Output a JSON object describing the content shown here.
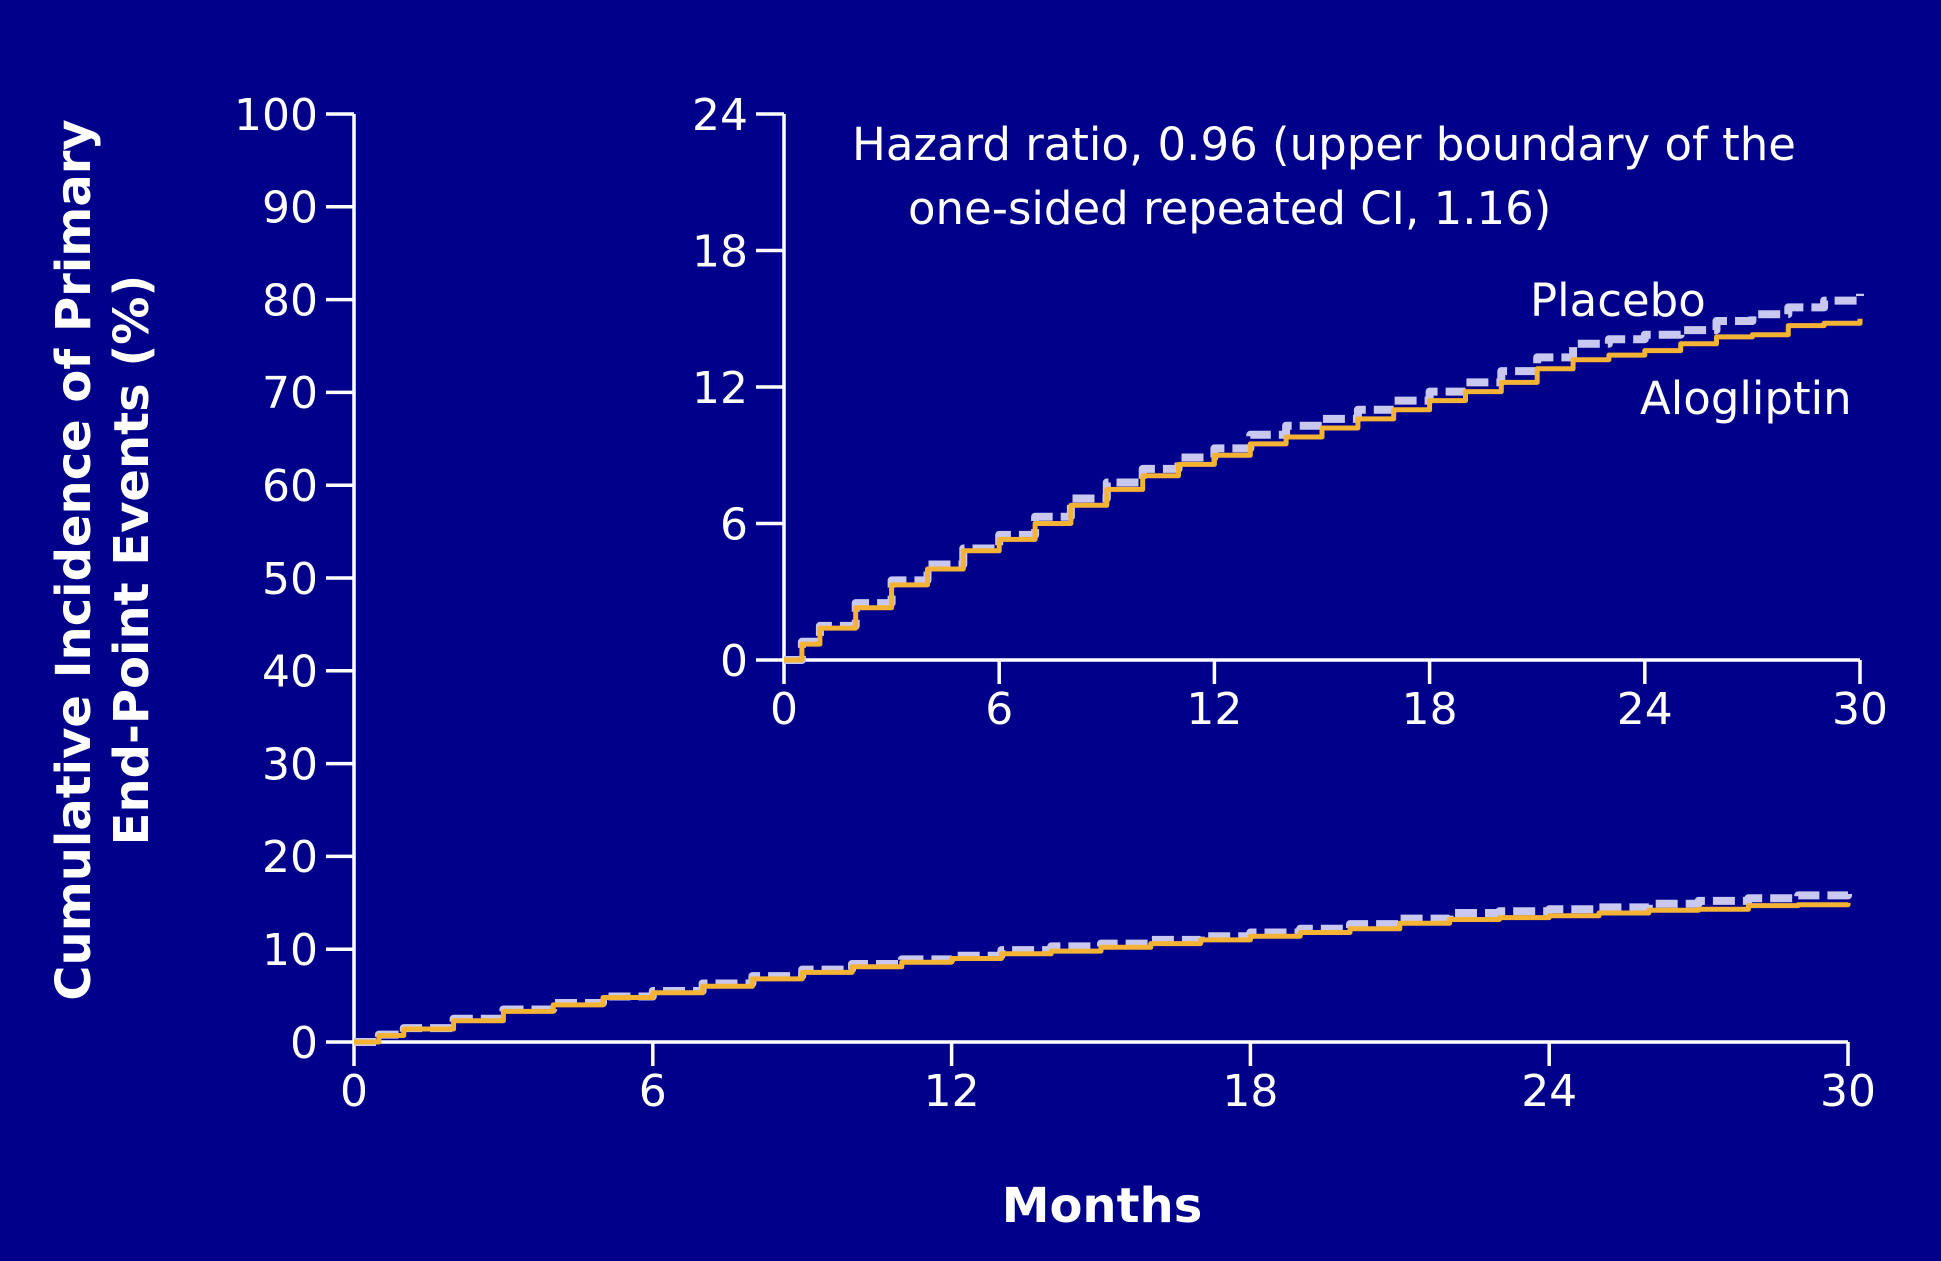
{
  "chart_data": [
    {
      "id": "main",
      "type": "line",
      "xlabel": "Months",
      "ylabel_lines": [
        "Cumulative Incidence of Primary",
        "End-Point Events (%)"
      ],
      "xlim": [
        0,
        30
      ],
      "ylim": [
        0,
        100
      ],
      "x_ticks": [
        0,
        6,
        12,
        18,
        24,
        30
      ],
      "y_ticks": [
        0,
        10,
        20,
        30,
        40,
        50,
        60,
        70,
        80,
        90,
        100
      ],
      "grid": false,
      "series": [
        {
          "name": "Placebo",
          "color": "#c8c8f0",
          "style": "dashed",
          "x": [
            0,
            0.5,
            1,
            2,
            3,
            4,
            5,
            6,
            7,
            8,
            9,
            10,
            11,
            12,
            13,
            14,
            15,
            16,
            17,
            18,
            19,
            20,
            21,
            22,
            23,
            24,
            25,
            26,
            27,
            28,
            29,
            30
          ],
          "y": [
            0,
            0.8,
            1.5,
            2.5,
            3.5,
            4.2,
            4.9,
            5.5,
            6.3,
            7.1,
            7.8,
            8.4,
            8.9,
            9.3,
            9.9,
            10.3,
            10.6,
            11.0,
            11.4,
            11.8,
            12.2,
            12.7,
            13.3,
            13.9,
            14.1,
            14.3,
            14.5,
            14.9,
            15.2,
            15.5,
            15.8,
            16.1
          ]
        },
        {
          "name": "Alogliptin",
          "color": "#f5b335",
          "style": "solid",
          "x": [
            0,
            0.5,
            1,
            2,
            3,
            4,
            5,
            6,
            7,
            8,
            9,
            10,
            11,
            12,
            13,
            14,
            15,
            16,
            17,
            18,
            19,
            20,
            21,
            22,
            23,
            24,
            25,
            26,
            27,
            28,
            29,
            30
          ],
          "y": [
            0,
            0.7,
            1.4,
            2.3,
            3.3,
            4.0,
            4.8,
            5.3,
            6.0,
            6.8,
            7.5,
            8.1,
            8.6,
            9.0,
            9.5,
            9.8,
            10.2,
            10.6,
            11.0,
            11.4,
            11.8,
            12.2,
            12.8,
            13.2,
            13.4,
            13.6,
            13.9,
            14.2,
            14.3,
            14.7,
            14.8,
            15.0
          ]
        }
      ]
    },
    {
      "id": "inset",
      "type": "line",
      "xlim": [
        0,
        30
      ],
      "ylim": [
        0,
        24
      ],
      "x_ticks": [
        0,
        6,
        12,
        18,
        24,
        30
      ],
      "y_ticks": [
        0,
        6,
        12,
        18,
        24
      ],
      "grid": false,
      "annotation_lines": [
        "Hazard ratio, 0.96 (upper boundary of the",
        "one-sided repeated CI, 1.16)"
      ],
      "labels": {
        "placebo": "Placebo",
        "alogliptin": "Alogliptin"
      }
    }
  ]
}
